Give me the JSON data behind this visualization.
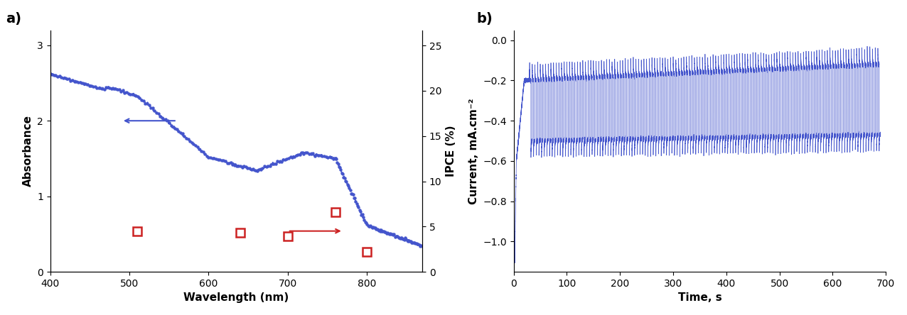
{
  "panel_a": {
    "title_label": "a)",
    "xlabel": "Wavelength (nm)",
    "ylabel_left": "Absorbance",
    "ylabel_right": "IPCE (%)",
    "xlim": [
      400,
      870
    ],
    "ylim_left": [
      0,
      3.2
    ],
    "ylim_right": [
      0,
      26.7
    ],
    "yticks_left": [
      0,
      1,
      2,
      3
    ],
    "yticks_right": [
      0,
      5,
      10,
      15,
      20,
      25
    ],
    "xticks": [
      400,
      500,
      600,
      700,
      800
    ],
    "absorbance_color": "#4455cc",
    "ipce_color": "#cc2222",
    "ipce_points": {
      "x": [
        510,
        640,
        700,
        760,
        800
      ],
      "y_ipce": [
        4.5,
        4.3,
        3.9,
        6.6,
        2.2
      ]
    }
  },
  "panel_b": {
    "title_label": "b)",
    "xlabel": "Time, s",
    "ylabel": "Current, mA.cm⁻²",
    "xlim": [
      0,
      700
    ],
    "ylim": [
      -1.15,
      0.05
    ],
    "xticks": [
      0,
      100,
      200,
      300,
      400,
      500,
      600,
      700
    ],
    "yticks": [
      0,
      -0.2,
      -0.4,
      -0.6,
      -0.8,
      -1.0
    ],
    "line_color": "#4455cc"
  },
  "figure_bg": "#ffffff"
}
